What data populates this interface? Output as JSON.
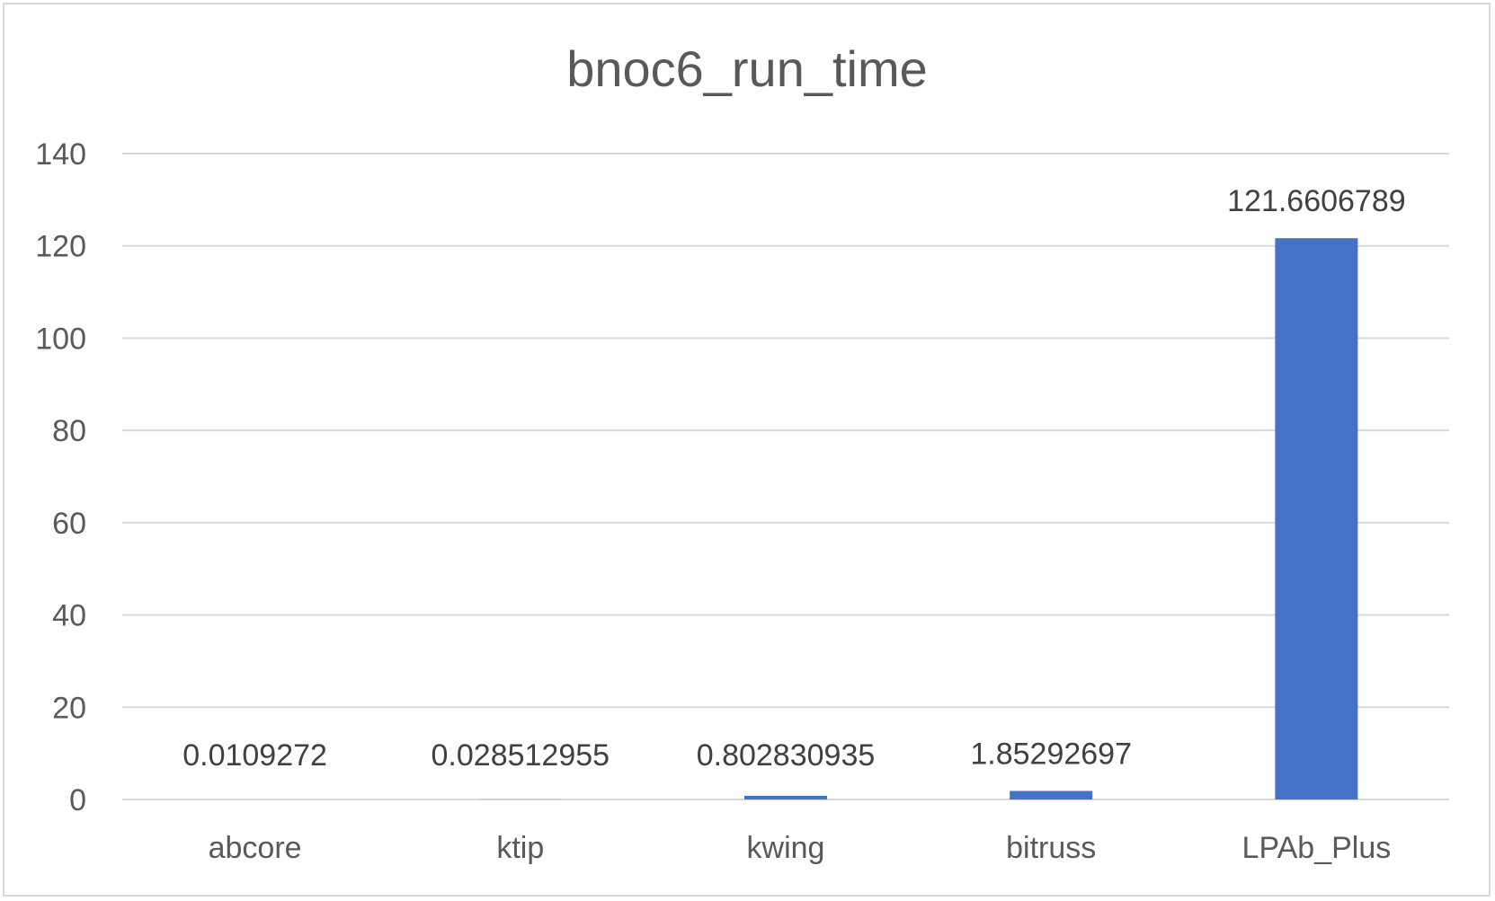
{
  "chart_data": {
    "type": "bar",
    "title": "bnoc6_run_time",
    "xlabel": "",
    "ylabel": "",
    "categories": [
      "abcore",
      "ktip",
      "kwing",
      "bitruss",
      "LPAb_Plus"
    ],
    "values": [
      0.0109272,
      0.028512955,
      0.802830935,
      1.85292697,
      121.6606789
    ],
    "data_labels": [
      "0.0109272",
      "0.028512955",
      "0.802830935",
      "1.85292697",
      "121.6606789"
    ],
    "ylim": [
      0,
      140
    ],
    "yticks": [
      0,
      20,
      40,
      60,
      80,
      100,
      120,
      140
    ],
    "ytick_labels": [
      "0",
      "20",
      "40",
      "60",
      "80",
      "100",
      "120",
      "140"
    ],
    "grid": true,
    "legend": "none",
    "bar_color": "#4472C4"
  }
}
